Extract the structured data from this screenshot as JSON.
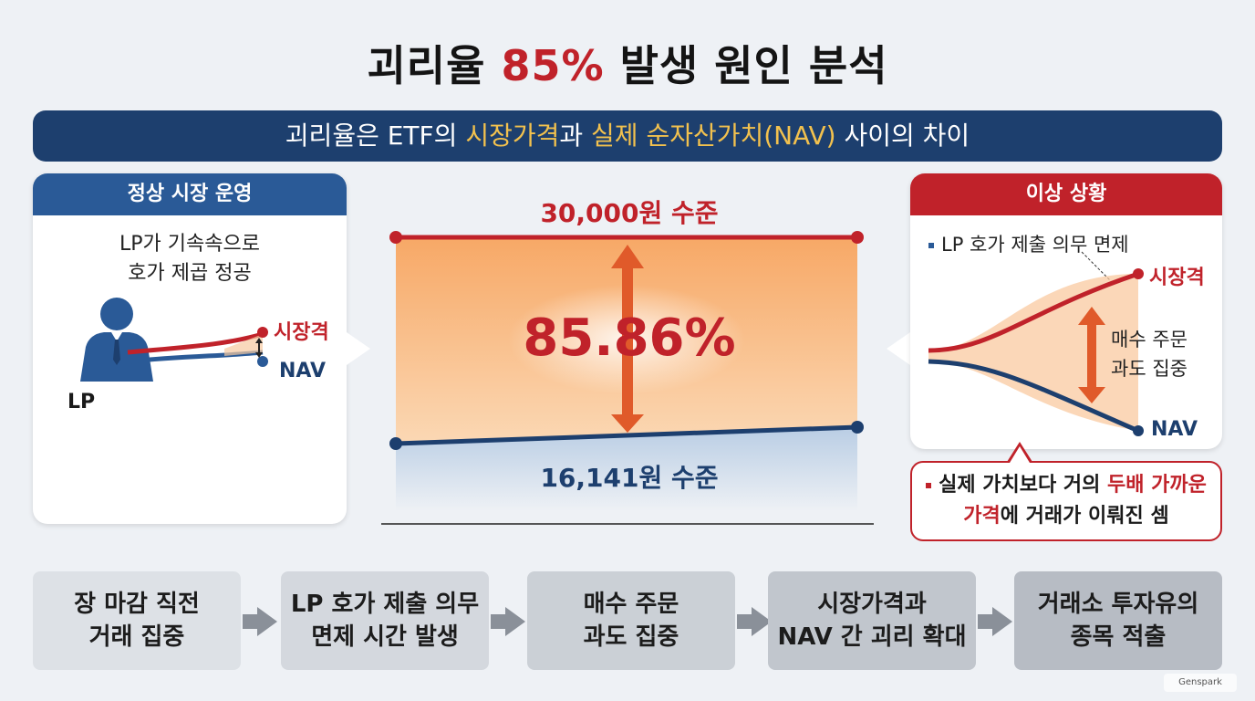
{
  "title": {
    "prefix": "괴리율 ",
    "highlight": "85%",
    "suffix": " 발생 원인 분석"
  },
  "banner": {
    "part1": "괴리율은 ETF의 ",
    "highlight1": "시장가격",
    "part2": "과 ",
    "highlight2": "실제 순자산가치(NAV)",
    "part3": " 사이의 차이"
  },
  "left_panel": {
    "heading": "정상 시장 운영",
    "desc_line1": "LP가 기속속으로",
    "desc_line2": "호가 제곱 정공",
    "person_label": "LP",
    "market_label": "시장격",
    "nav_label": "NAV"
  },
  "center": {
    "top_label": "30,000원 수준",
    "percent_label": "85.86%",
    "bottom_label": "16,141원 수준"
  },
  "right_panel": {
    "heading": "이상 상황",
    "bullet": "LP 호가 제출 의무 면제",
    "market_label": "시장격",
    "nav_label": "NAV",
    "arrow_label_line1": "매수 주문",
    "arrow_label_line2": "과도 집중"
  },
  "note": {
    "line1_part1": "실제 가치보다 거의 ",
    "line1_highlight": "두배 가까운",
    "line2_highlight": "가격",
    "line2_part2": "에 거래가 이뤄진 셈"
  },
  "flow": [
    {
      "line1": "장 마감 직전",
      "line2": "거래 집중"
    },
    {
      "line1": "LP 호가 제출 의무",
      "line2": "면제 시간 발생"
    },
    {
      "line1": "매수 주문",
      "line2": "과도 집중"
    },
    {
      "line1": "시장가격과",
      "line2": "NAV 간 괴리 확대"
    },
    {
      "line1": "거래소 투자유의",
      "line2": "종목 적출"
    }
  ],
  "brand": "Genspark",
  "colors": {
    "navy": "#1d3f6e",
    "blue": "#2a5a97",
    "red": "#c0222a",
    "gold": "#f2c14e",
    "orange_fill": "#f7b27a"
  }
}
